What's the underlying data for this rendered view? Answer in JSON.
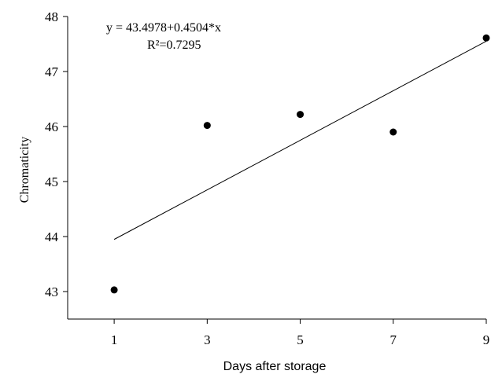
{
  "chart_data": {
    "type": "scatter",
    "xlabel": "Days after storage",
    "ylabel": "Chromaticity",
    "xlim": [
      0,
      9
    ],
    "ylim": [
      42.5,
      48
    ],
    "x_ticks": [
      "1",
      "3",
      "5",
      "7",
      "9"
    ],
    "y_ticks": [
      "43",
      "44",
      "45",
      "46",
      "47",
      "48"
    ],
    "grid": false,
    "series": [
      {
        "points": [
          {
            "x": 1,
            "y": 43.03
          },
          {
            "x": 3,
            "y": 46.02
          },
          {
            "x": 5,
            "y": 46.22
          },
          {
            "x": 7,
            "y": 45.9
          },
          {
            "x": 9,
            "y": 47.61
          }
        ]
      }
    ],
    "trendline": {
      "intercept": 43.4978,
      "slope": 0.4504,
      "x_range": [
        1,
        9
      ]
    },
    "annotations": {
      "equation": "y = 43.4978+0.4504*x",
      "r_squared": "R²=0.7295"
    }
  }
}
